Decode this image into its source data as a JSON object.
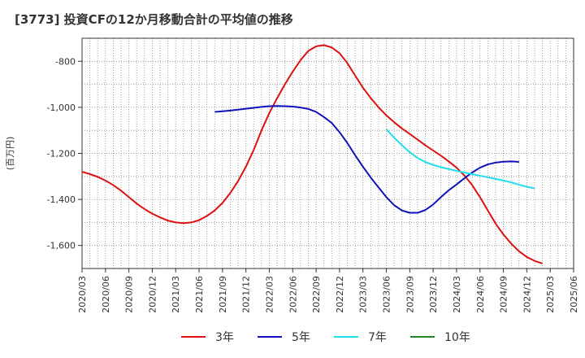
{
  "chart_data": {
    "type": "line",
    "title": "[3773]  投資CFの12か月移動合計の平均値の推移",
    "ylabel": "(百万円)",
    "xlabel": "",
    "ylim": [
      -1700,
      -700
    ],
    "yticks": [
      -1600,
      -1400,
      -1200,
      -1000,
      -800
    ],
    "ytick_labels": [
      "-1,600",
      "-1,400",
      "-1,200",
      "-1,000",
      "-800"
    ],
    "xticks": [
      "2020/03",
      "2020/06",
      "2020/09",
      "2020/12",
      "2021/03",
      "2021/06",
      "2021/09",
      "2021/12",
      "2022/03",
      "2022/06",
      "2022/09",
      "2022/12",
      "2023/03",
      "2023/06",
      "2023/09",
      "2023/12",
      "2024/03",
      "2024/06",
      "2024/09",
      "2024/12",
      "2025/03",
      "2025/06"
    ],
    "grid": true,
    "legend_position": "bottom",
    "series": [
      {
        "name": "3年",
        "color": "#dd1111",
        "points": [
          [
            "2020/03",
            -1280
          ],
          [
            "2020/04",
            -1290
          ],
          [
            "2020/05",
            -1302
          ],
          [
            "2020/06",
            -1318
          ],
          [
            "2020/07",
            -1338
          ],
          [
            "2020/08",
            -1362
          ],
          [
            "2020/09",
            -1390
          ],
          [
            "2020/10",
            -1418
          ],
          [
            "2020/11",
            -1442
          ],
          [
            "2020/12",
            -1462
          ],
          [
            "2021/01",
            -1478
          ],
          [
            "2021/02",
            -1492
          ],
          [
            "2021/03",
            -1500
          ],
          [
            "2021/04",
            -1503
          ],
          [
            "2021/05",
            -1500
          ],
          [
            "2021/06",
            -1490
          ],
          [
            "2021/07",
            -1472
          ],
          [
            "2021/08",
            -1448
          ],
          [
            "2021/09",
            -1415
          ],
          [
            "2021/10",
            -1372
          ],
          [
            "2021/11",
            -1320
          ],
          [
            "2021/12",
            -1258
          ],
          [
            "2022/01",
            -1185
          ],
          [
            "2022/02",
            -1100
          ],
          [
            "2022/03",
            -1025
          ],
          [
            "2022/04",
            -960
          ],
          [
            "2022/05",
            -900
          ],
          [
            "2022/06",
            -845
          ],
          [
            "2022/07",
            -795
          ],
          [
            "2022/08",
            -755
          ],
          [
            "2022/09",
            -735
          ],
          [
            "2022/10",
            -730
          ],
          [
            "2022/11",
            -740
          ],
          [
            "2022/12",
            -765
          ],
          [
            "2023/01",
            -808
          ],
          [
            "2023/02",
            -862
          ],
          [
            "2023/03",
            -915
          ],
          [
            "2023/04",
            -960
          ],
          [
            "2023/05",
            -1000
          ],
          [
            "2023/06",
            -1035
          ],
          [
            "2023/07",
            -1065
          ],
          [
            "2023/08",
            -1092
          ],
          [
            "2023/09",
            -1116
          ],
          [
            "2023/10",
            -1140
          ],
          [
            "2023/11",
            -1165
          ],
          [
            "2023/12",
            -1188
          ],
          [
            "2024/01",
            -1210
          ],
          [
            "2024/02",
            -1235
          ],
          [
            "2024/03",
            -1262
          ],
          [
            "2024/04",
            -1296
          ],
          [
            "2024/05",
            -1338
          ],
          [
            "2024/06",
            -1390
          ],
          [
            "2024/07",
            -1448
          ],
          [
            "2024/08",
            -1505
          ],
          [
            "2024/09",
            -1552
          ],
          [
            "2024/10",
            -1592
          ],
          [
            "2024/11",
            -1625
          ],
          [
            "2024/12",
            -1650
          ],
          [
            "2025/01",
            -1667
          ],
          [
            "2025/02",
            -1678
          ]
        ]
      },
      {
        "name": "5年",
        "color": "#1111bb",
        "points": [
          [
            "2021/08",
            -1020
          ],
          [
            "2021/09",
            -1017
          ],
          [
            "2021/10",
            -1014
          ],
          [
            "2021/11",
            -1010
          ],
          [
            "2021/12",
            -1006
          ],
          [
            "2022/01",
            -1002
          ],
          [
            "2022/02",
            -998
          ],
          [
            "2022/03",
            -995
          ],
          [
            "2022/04",
            -994
          ],
          [
            "2022/05",
            -995
          ],
          [
            "2022/06",
            -997
          ],
          [
            "2022/07",
            -1001
          ],
          [
            "2022/08",
            -1007
          ],
          [
            "2022/09",
            -1020
          ],
          [
            "2022/10",
            -1042
          ],
          [
            "2022/11",
            -1068
          ],
          [
            "2022/12",
            -1108
          ],
          [
            "2023/01",
            -1155
          ],
          [
            "2023/02",
            -1208
          ],
          [
            "2023/03",
            -1258
          ],
          [
            "2023/04",
            -1305
          ],
          [
            "2023/05",
            -1348
          ],
          [
            "2023/06",
            -1390
          ],
          [
            "2023/07",
            -1425
          ],
          [
            "2023/08",
            -1448
          ],
          [
            "2023/09",
            -1458
          ],
          [
            "2023/10",
            -1458
          ],
          [
            "2023/11",
            -1446
          ],
          [
            "2023/12",
            -1422
          ],
          [
            "2024/01",
            -1390
          ],
          [
            "2024/02",
            -1360
          ],
          [
            "2024/03",
            -1335
          ],
          [
            "2024/04",
            -1308
          ],
          [
            "2024/05",
            -1283
          ],
          [
            "2024/06",
            -1262
          ],
          [
            "2024/07",
            -1248
          ],
          [
            "2024/08",
            -1240
          ],
          [
            "2024/09",
            -1236
          ],
          [
            "2024/10",
            -1235
          ],
          [
            "2024/11",
            -1237
          ]
        ]
      },
      {
        "name": "7年",
        "color": "#22ddee",
        "points": [
          [
            "2023/06",
            -1095
          ],
          [
            "2023/07",
            -1132
          ],
          [
            "2023/08",
            -1165
          ],
          [
            "2023/09",
            -1195
          ],
          [
            "2023/10",
            -1220
          ],
          [
            "2023/11",
            -1238
          ],
          [
            "2023/12",
            -1250
          ],
          [
            "2024/01",
            -1260
          ],
          [
            "2024/02",
            -1268
          ],
          [
            "2024/03",
            -1276
          ],
          [
            "2024/04",
            -1283
          ],
          [
            "2024/05",
            -1290
          ],
          [
            "2024/06",
            -1297
          ],
          [
            "2024/07",
            -1304
          ],
          [
            "2024/08",
            -1311
          ],
          [
            "2024/09",
            -1318
          ],
          [
            "2024/10",
            -1326
          ],
          [
            "2024/11",
            -1336
          ],
          [
            "2024/12",
            -1345
          ],
          [
            "2025/01",
            -1352
          ]
        ]
      },
      {
        "name": "10年",
        "color": "#228822",
        "points": []
      }
    ]
  }
}
